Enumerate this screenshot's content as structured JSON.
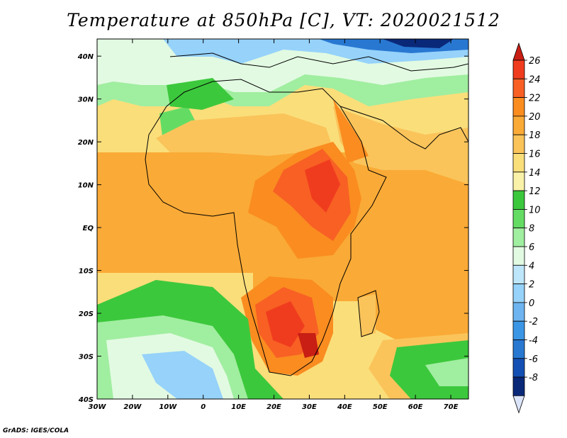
{
  "title": "Temperature at 850hPa [C], VT: 2020021512",
  "credit": "GrADS: IGES/COLA",
  "map": {
    "lon_range": [
      -30,
      75
    ],
    "lat_range": [
      -40,
      44
    ],
    "lon_ticks": [
      {
        "value": -30,
        "label": "30W"
      },
      {
        "value": -20,
        "label": "20W"
      },
      {
        "value": -10,
        "label": "10W"
      },
      {
        "value": 0,
        "label": "0"
      },
      {
        "value": 10,
        "label": "10E"
      },
      {
        "value": 20,
        "label": "20E"
      },
      {
        "value": 30,
        "label": "30E"
      },
      {
        "value": 40,
        "label": "40E"
      },
      {
        "value": 50,
        "label": "50E"
      },
      {
        "value": 60,
        "label": "60E"
      },
      {
        "value": 70,
        "label": "70E"
      }
    ],
    "lat_ticks": [
      {
        "value": 40,
        "label": "40N"
      },
      {
        "value": 30,
        "label": "30N"
      },
      {
        "value": 20,
        "label": "20N"
      },
      {
        "value": 10,
        "label": "10N"
      },
      {
        "value": 0,
        "label": "EQ"
      },
      {
        "value": -10,
        "label": "10S"
      },
      {
        "value": -20,
        "label": "20S"
      },
      {
        "value": -30,
        "label": "30S"
      },
      {
        "value": -40,
        "label": "40S"
      }
    ]
  },
  "colorbar": {
    "levels": [
      26,
      24,
      22,
      20,
      18,
      16,
      14,
      12,
      10,
      8,
      6,
      4,
      2,
      0,
      -2,
      -4,
      -6,
      -8
    ],
    "colors": [
      "#f03c1e",
      "#f86024",
      "#fa8c20",
      "#faaa36",
      "#fac45a",
      "#fade7a",
      "#faf2a8",
      "#3cc83c",
      "#64dc64",
      "#a0eea0",
      "#e2fae2",
      "#bee6fa",
      "#96d2fa",
      "#6eb4f0",
      "#3c96e6",
      "#2878d2",
      "#1450b4",
      "#0a2878"
    ],
    "top_triangle_color": "#c81e14",
    "bottom_triangle_color": "#dce4fa"
  }
}
